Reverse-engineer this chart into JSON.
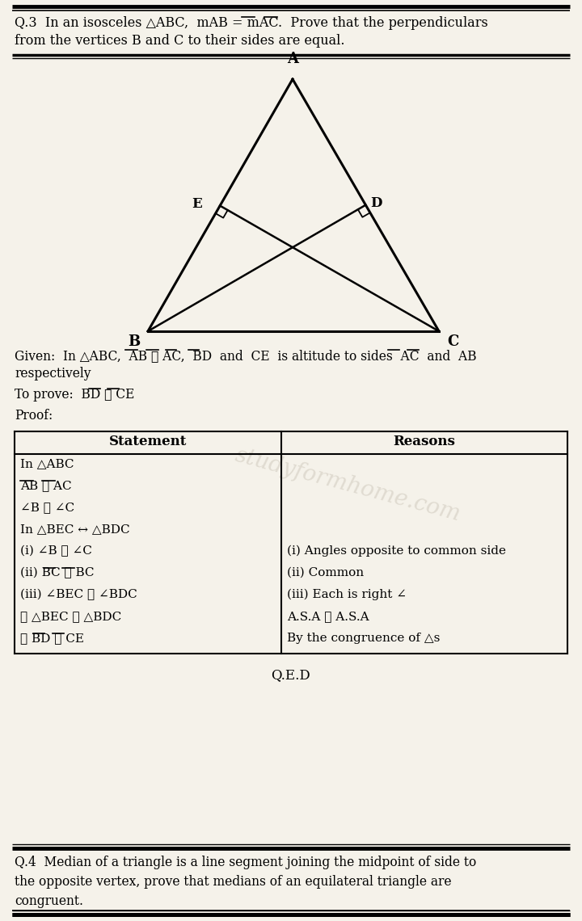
{
  "bg_color": "#f5f2ea",
  "border_color": "#222222",
  "title_q3_line1": "Q.3  In an isosceles △ABC,  mAB = mAC.  Prove that the perpendiculars",
  "title_q3_line2": "from the vertices B and C to their sides are equal.",
  "given_line1": "Given:  In △ABC,  AB ≅ AC,  BD  and  CE  is altitude to sides  AC  and  AB",
  "given_line2": "respectively",
  "toprove": "To prove:  BD ≅ CE",
  "proof": "Proof:",
  "stmt_header": "Statement",
  "rsn_header": "Reasons",
  "statements": [
    "In △ABC",
    "AB ≅ AC",
    "∠B ≅ ∠C",
    "In △BEC ↔ △BDC",
    "(i) ∠B ≅ ∠C",
    "(ii) BC ≅ BC",
    "(iii) ∠BEC ≅ ∠BDC",
    "∴ △BEC ≅ △BDC",
    "∴ BD ≅ CE"
  ],
  "reasons": [
    "",
    "",
    "",
    "",
    "(i) Angles opposite to common side",
    "(ii) Common",
    "(iii) Each is right ∠",
    "A.S.A ≅ A.S.A",
    "By the congruence of △s"
  ],
  "qed": "Q.E.D",
  "q4_line1": "Q.4  Median of a triangle is a line segment joining the midpoint of side to",
  "q4_line2": "the opposite vertex, prove that medians of an equilateral triangle are",
  "q4_line3": "congruent.",
  "watermark": "studyformhome.com"
}
